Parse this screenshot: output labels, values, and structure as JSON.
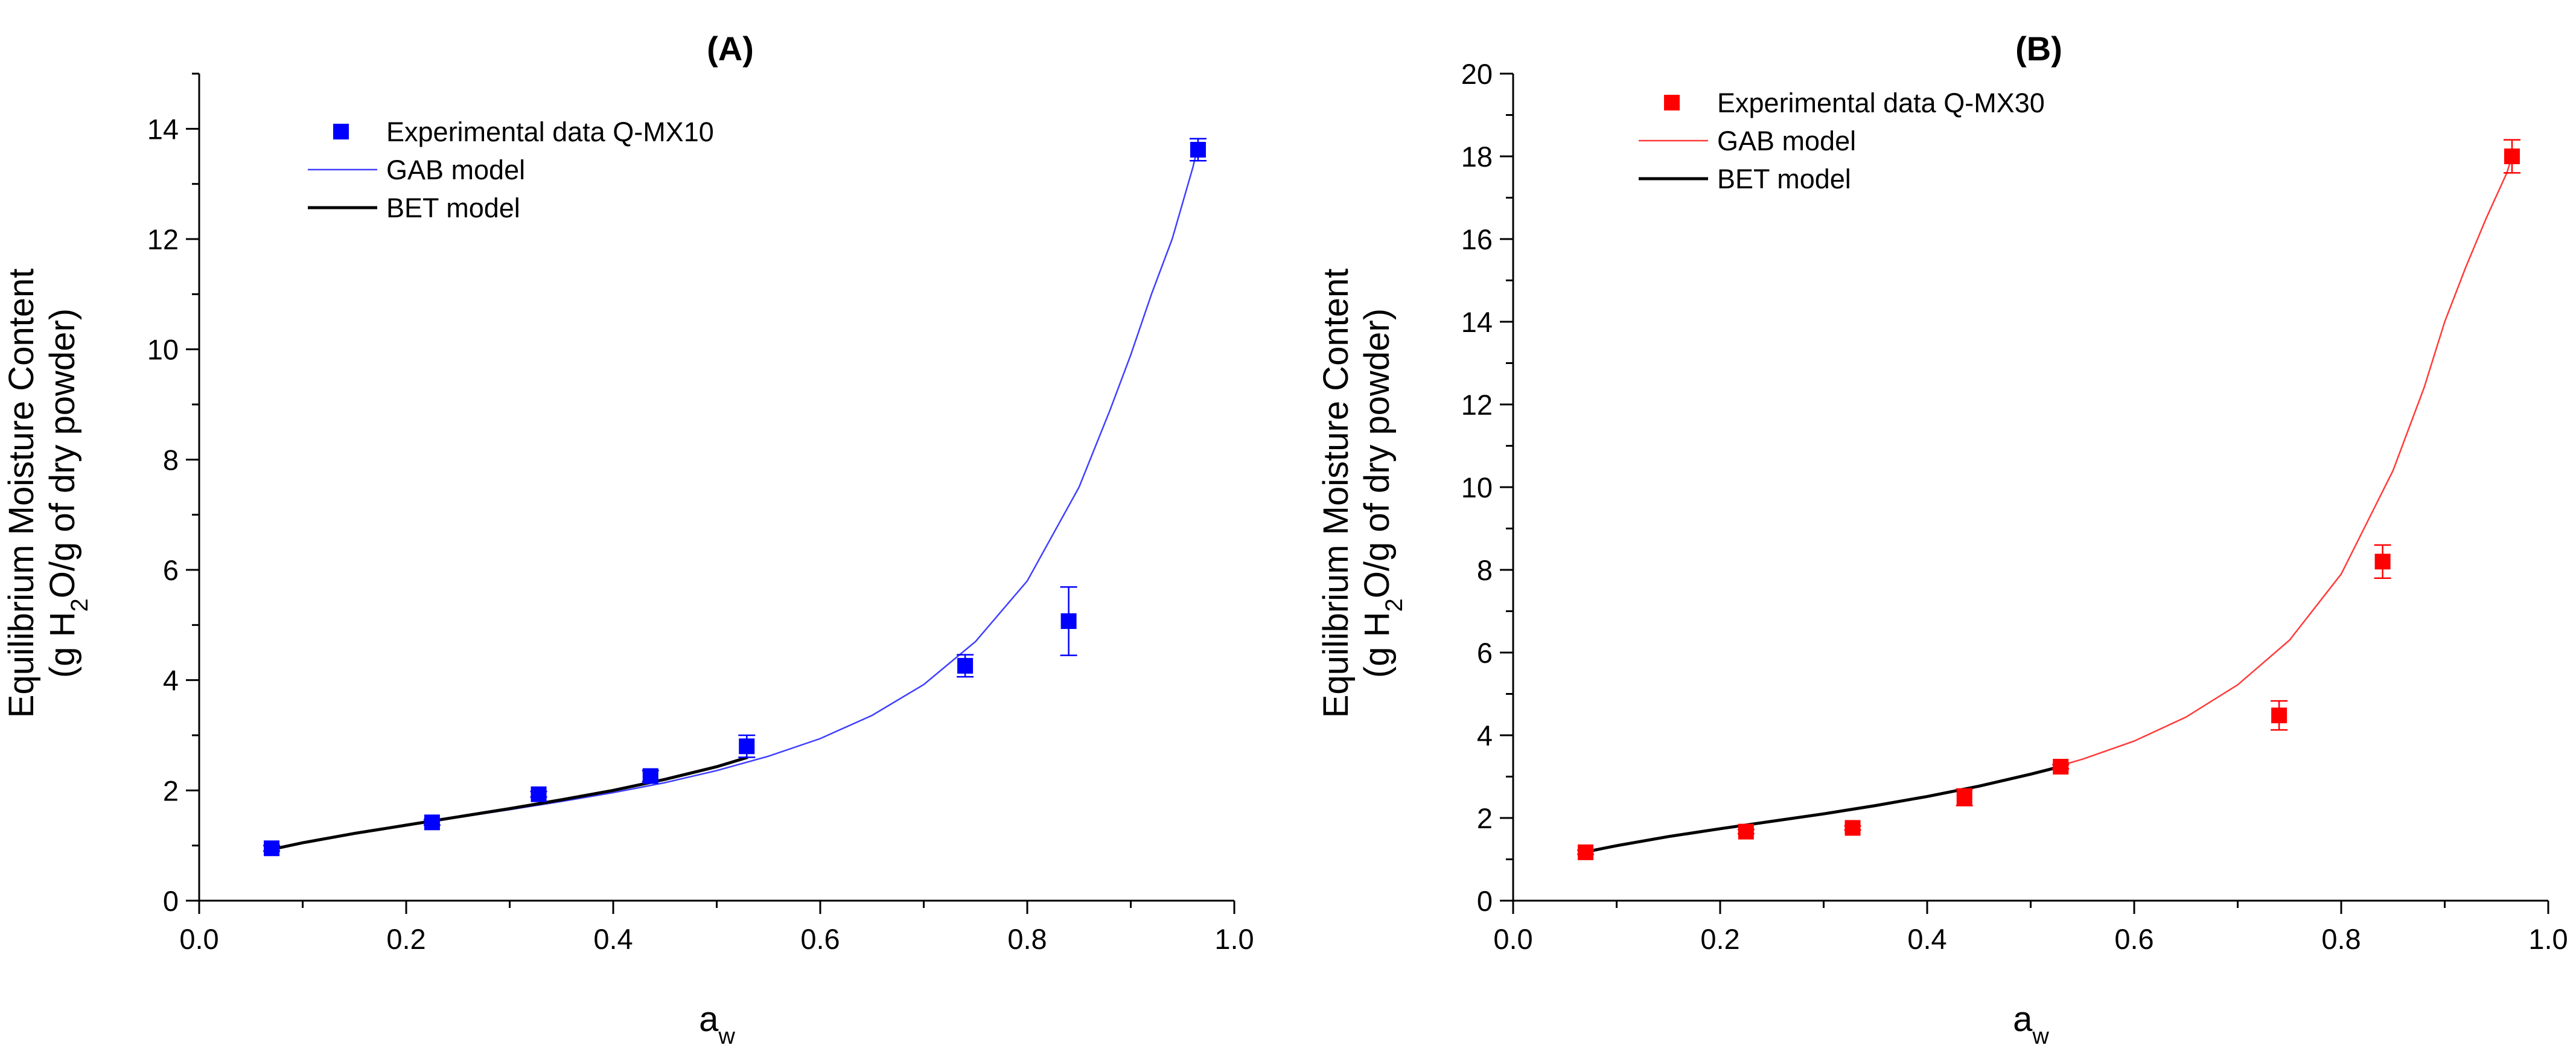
{
  "chart_data": [
    {
      "type": "scatter",
      "title": "(A)",
      "xlabel": "a",
      "xlabel_sub": "w",
      "ylabel_line1": "Equilibrium Moisture Content",
      "ylabel_line2_parts": [
        "(g H",
        "2",
        "O/g of dry powder)"
      ],
      "xlim": [
        0.0,
        1.0
      ],
      "ylim": [
        0,
        15
      ],
      "x_ticks": [
        0.0,
        0.2,
        0.4,
        0.6,
        0.8,
        1.0
      ],
      "x_tick_labels": [
        "0.0",
        "0.2",
        "0.4",
        "0.6",
        "0.8",
        "1.0"
      ],
      "y_ticks": [
        0,
        2,
        4,
        6,
        8,
        10,
        12,
        14
      ],
      "y_tick_labels": [
        "0",
        "2",
        "4",
        "6",
        "8",
        "10",
        "12",
        "14"
      ],
      "legend_position": "top-left",
      "series": [
        {
          "name": "Experimental data Q-MX10",
          "kind": "points",
          "color": "#0000ff",
          "x": [
            0.07,
            0.225,
            0.328,
            0.436,
            0.529,
            0.74,
            0.84,
            0.965
          ],
          "y": [
            0.95,
            1.42,
            1.93,
            2.26,
            2.8,
            4.26,
            5.07,
            13.62
          ],
          "err": [
            0.05,
            0.05,
            0.05,
            0.1,
            0.2,
            0.2,
            0.62,
            0.2
          ]
        },
        {
          "name": "GAB model",
          "kind": "line",
          "color": "#3f3fff",
          "x": [
            0.07,
            0.1,
            0.15,
            0.2,
            0.25,
            0.3,
            0.35,
            0.4,
            0.45,
            0.5,
            0.55,
            0.6,
            0.65,
            0.7,
            0.75,
            0.8,
            0.85,
            0.88,
            0.9,
            0.92,
            0.94,
            0.96,
            0.965
          ],
          "y": [
            0.93,
            1.05,
            1.22,
            1.37,
            1.51,
            1.65,
            1.8,
            1.96,
            2.14,
            2.36,
            2.62,
            2.94,
            3.36,
            3.92,
            4.7,
            5.8,
            7.5,
            8.9,
            9.9,
            11.0,
            12.0,
            13.3,
            13.7
          ]
        },
        {
          "name": "BET model",
          "kind": "line",
          "color": "#000000",
          "x": [
            0.07,
            0.1,
            0.15,
            0.2,
            0.25,
            0.3,
            0.35,
            0.4,
            0.45,
            0.5,
            0.53
          ],
          "y": [
            0.93,
            1.05,
            1.22,
            1.37,
            1.52,
            1.67,
            1.83,
            2.0,
            2.2,
            2.43,
            2.6
          ]
        }
      ]
    },
    {
      "type": "scatter",
      "title": "(B)",
      "xlabel": "a",
      "xlabel_sub": "w",
      "ylabel_line1": "Equilibrium Moisture Content",
      "ylabel_line2_parts": [
        "(g H",
        "2",
        "O/g of dry powder)"
      ],
      "xlim": [
        0.0,
        1.0
      ],
      "ylim": [
        0,
        20
      ],
      "x_ticks": [
        0.0,
        0.2,
        0.4,
        0.6,
        0.8,
        1.0
      ],
      "x_tick_labels": [
        "0.0",
        "0.2",
        "0.4",
        "0.6",
        "0.8",
        "1.0"
      ],
      "y_ticks": [
        0,
        2,
        4,
        6,
        8,
        10,
        12,
        14,
        16,
        18,
        20
      ],
      "y_tick_labels": [
        "0",
        "2",
        "4",
        "6",
        "8",
        "10",
        "12",
        "14",
        "16",
        "18",
        "20"
      ],
      "legend_position": "top-left",
      "series": [
        {
          "name": "Experimental data Q-MX30",
          "kind": "points",
          "color": "#ff0000",
          "x": [
            0.07,
            0.225,
            0.328,
            0.436,
            0.529,
            0.74,
            0.84,
            0.965
          ],
          "y": [
            1.17,
            1.67,
            1.76,
            2.5,
            3.24,
            4.48,
            8.2,
            18.0
          ],
          "err": [
            0.05,
            0.05,
            0.05,
            0.2,
            0.05,
            0.35,
            0.4,
            0.4
          ]
        },
        {
          "name": "GAB model",
          "kind": "line",
          "color": "#ff3a3a",
          "x": [
            0.07,
            0.1,
            0.15,
            0.2,
            0.25,
            0.3,
            0.35,
            0.4,
            0.45,
            0.5,
            0.55,
            0.6,
            0.65,
            0.7,
            0.75,
            0.8,
            0.85,
            0.88,
            0.9,
            0.92,
            0.94,
            0.96,
            0.965
          ],
          "y": [
            1.18,
            1.33,
            1.55,
            1.74,
            1.92,
            2.1,
            2.3,
            2.52,
            2.77,
            3.06,
            3.42,
            3.86,
            4.44,
            5.22,
            6.3,
            7.9,
            10.4,
            12.4,
            14.0,
            15.3,
            16.5,
            17.6,
            18.0
          ]
        },
        {
          "name": "BET model",
          "kind": "line",
          "color": "#000000",
          "x": [
            0.07,
            0.1,
            0.15,
            0.2,
            0.25,
            0.3,
            0.35,
            0.4,
            0.45,
            0.5,
            0.53
          ],
          "y": [
            1.18,
            1.33,
            1.55,
            1.74,
            1.92,
            2.1,
            2.3,
            2.52,
            2.77,
            3.06,
            3.25
          ]
        }
      ]
    }
  ]
}
